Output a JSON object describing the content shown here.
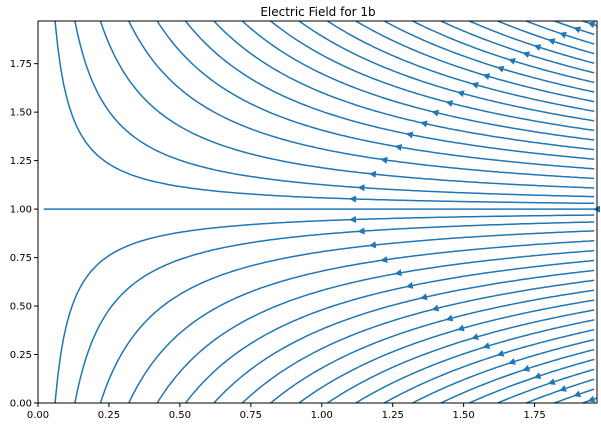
{
  "chart_data": {
    "type": "streamplot",
    "title": "Electric Field for 1b",
    "xlabel": "",
    "ylabel": "",
    "xlim": [
      0,
      1.97
    ],
    "ylim": [
      0,
      1.97
    ],
    "xticks": [
      "0.00",
      "0.25",
      "0.50",
      "0.75",
      "1.00",
      "1.25",
      "1.50",
      "1.75"
    ],
    "yticks": [
      "0.00",
      "0.25",
      "0.50",
      "0.75",
      "1.00",
      "1.25",
      "1.50",
      "1.75"
    ],
    "grid": false,
    "line_color": "#1f77b4",
    "field_description": "Streamlines converge toward the horizontal line y = 1 and flow leftward toward the left edge; curves open upward above y = 1 and downward below y = 1, with field arrows along each streamline.",
    "streamline_x_intercepts_bottom": [
      0.06,
      0.13,
      0.22,
      0.32,
      0.42,
      0.52,
      0.62,
      0.72,
      0.82,
      0.92,
      1.02,
      1.12,
      1.22,
      1.32,
      1.42,
      1.52,
      1.62,
      1.72,
      1.82,
      1.92
    ],
    "streamline_x_intercepts_top": [
      0.06,
      0.13,
      0.22,
      0.32,
      0.42,
      0.52,
      0.62,
      0.72,
      0.82,
      0.92,
      1.02,
      1.12,
      1.22,
      1.32,
      1.42,
      1.52,
      1.62,
      1.72,
      1.82,
      1.92
    ],
    "separatrix_y": 1.0
  }
}
